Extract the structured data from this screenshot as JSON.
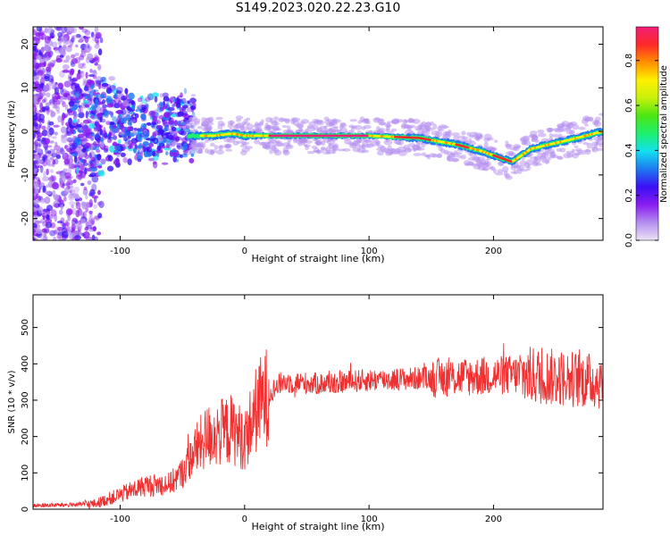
{
  "title": "S149.2023.020.22.23.G10",
  "chart_data": [
    {
      "type": "heatmap",
      "title": "S149.2023.020.22.23.G10",
      "xlabel": "Height of straight line (km)",
      "ylabel": "Frequency (Hz)",
      "xlim": [
        -170,
        288
      ],
      "ylim": [
        -25,
        24
      ],
      "x_ticks": [
        "-100",
        "0",
        "100",
        "200"
      ],
      "x_tick_values": [
        -100,
        0,
        100,
        200
      ],
      "y_ticks": [
        "-20",
        "-10",
        "0",
        "10",
        "20"
      ],
      "y_tick_values": [
        -20,
        -10,
        0,
        10,
        20
      ],
      "ridge": {
        "x": [
          -40,
          -25,
          -10,
          0,
          20,
          60,
          100,
          140,
          170,
          190,
          205,
          215,
          230,
          260,
          288
        ],
        "frequency": [
          -1,
          -1,
          -0.5,
          -1,
          -1,
          -1,
          -1,
          -1.5,
          -3,
          -4.5,
          -6,
          -7,
          -4,
          -2,
          0
        ]
      },
      "colorbar": {
        "label": "Normalized spectral amplitude",
        "range": [
          0.0,
          0.95
        ],
        "ticks": [
          "0.0",
          "0.2",
          "0.4",
          "0.6",
          "0.8"
        ],
        "tick_values": [
          0.0,
          0.2,
          0.4,
          0.6,
          0.8
        ],
        "colors": [
          "#ece3f5",
          "#b48ef0",
          "#8a1cf0",
          "#3a0ff5",
          "#1e78f0",
          "#12e0f0",
          "#1ef06e",
          "#4be614",
          "#c8f00a",
          "#fff000",
          "#ff9000",
          "#ff2828",
          "#f01e78"
        ]
      }
    },
    {
      "type": "line",
      "xlabel": "Height of straight line (km)",
      "ylabel": "SNR (10 * v/v)",
      "xlim": [
        -170,
        288
      ],
      "ylim": [
        0,
        590
      ],
      "x_ticks": [
        "-100",
        "0",
        "100",
        "200"
      ],
      "x_tick_values": [
        -100,
        0,
        100,
        200
      ],
      "y_ticks": [
        "0",
        "100",
        "200",
        "300",
        "400",
        "500"
      ],
      "y_tick_values": [
        0,
        100,
        200,
        300,
        400,
        500
      ],
      "color": "#f03030",
      "trend": {
        "x": [
          -170,
          -140,
          -120,
          -100,
          -80,
          -60,
          -50,
          -40,
          -30,
          -20,
          -10,
          0,
          10,
          20,
          30,
          60,
          100,
          140,
          180,
          220,
          260,
          288
        ],
        "y": [
          10,
          12,
          15,
          40,
          65,
          70,
          100,
          160,
          200,
          210,
          220,
          190,
          280,
          320,
          350,
          345,
          355,
          360,
          365,
          370,
          360,
          350
        ]
      }
    }
  ]
}
